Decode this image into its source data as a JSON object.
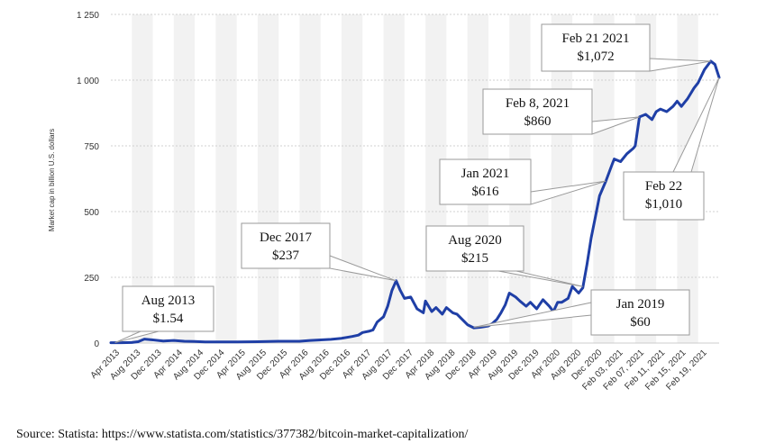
{
  "chart_data": {
    "type": "line",
    "ylabel": "Market cap in billion U.S. dollars",
    "ylim": [
      0,
      1250
    ],
    "y_ticks": [
      0,
      250,
      500,
      750,
      1000,
      1250
    ],
    "y_tick_labels": [
      "0",
      "250",
      "500",
      "750",
      "1 000",
      "1 250"
    ],
    "x_tick_labels": [
      "Apr 2013",
      "Aug 2013",
      "Dec 2013",
      "Apr 2014",
      "Aug 2014",
      "Dec 2014",
      "Apr 2015",
      "Aug 2015",
      "Dec 2015",
      "Apr 2016",
      "Aug 2016",
      "Dec 2016",
      "Apr 2017",
      "Aug 2017",
      "Dec 2017",
      "Apr 2018",
      "Aug 2018",
      "Dec 2018",
      "Apr 2019",
      "Aug 2019",
      "Dec 2019",
      "Apr 2020",
      "Aug 2020",
      "Dec 2020",
      "Feb 03, 2021",
      "Feb 07, 2021",
      "Feb 11, 2021",
      "Feb 15, 2021",
      "Feb 19, 2021"
    ],
    "grid": true,
    "series": [
      {
        "color": "#1f3fa6",
        "x": [
          0,
          0.5,
          1,
          1.3,
          1.6,
          2,
          2.5,
          3,
          3.5,
          4,
          4.5,
          5,
          6,
          7,
          8,
          9,
          9.5,
          10,
          10.5,
          11,
          11.5,
          11.8,
          12,
          12.3,
          12.5,
          12.7,
          13,
          13.2,
          13.4,
          13.6,
          13.8,
          14,
          14.3,
          14.6,
          14.9,
          15,
          15.3,
          15.5,
          15.8,
          16,
          16.3,
          16.5,
          17,
          17.3,
          17.6,
          18,
          18.2,
          18.4,
          18.6,
          18.8,
          19,
          19.3,
          19.5,
          19.8,
          20,
          20.3,
          20.6,
          20.9,
          21.1,
          21.3,
          21.5,
          21.8,
          22,
          22.3,
          22.5,
          22.7,
          22.9,
          23.1,
          23.3,
          23.6,
          23.9,
          24,
          24.3,
          24.6,
          24.9,
          25,
          25.2,
          25.5,
          25.8,
          26,
          26.2,
          26.5,
          26.8,
          27,
          27.2,
          27.5,
          27.8,
          28,
          28.3,
          28.6,
          28.8,
          29
        ],
        "y": [
          1.5,
          1.5,
          2,
          5,
          15,
          12,
          8,
          10,
          7,
          6,
          4,
          4,
          4,
          5,
          7,
          7,
          10,
          12,
          14,
          18,
          25,
          30,
          40,
          45,
          50,
          80,
          100,
          140,
          200,
          237,
          200,
          170,
          175,
          130,
          115,
          160,
          120,
          135,
          110,
          135,
          115,
          110,
          70,
          58,
          60,
          65,
          75,
          90,
          115,
          145,
          190,
          175,
          160,
          140,
          155,
          130,
          165,
          140,
          120,
          155,
          155,
          170,
          215,
          190,
          210,
          300,
          400,
          480,
          560,
          616,
          680,
          700,
          690,
          720,
          740,
          750,
          860,
          870,
          850,
          880,
          890,
          880,
          900,
          920,
          900,
          930,
          970,
          990,
          1040,
          1072,
          1060,
          1010
        ]
      }
    ],
    "annotations": [
      {
        "lines": [
          "Aug 2013",
          "$1.54"
        ]
      },
      {
        "lines": [
          "Dec 2017",
          "$237"
        ]
      },
      {
        "lines": [
          "Aug 2020",
          "$215"
        ]
      },
      {
        "lines": [
          "Jan 2019",
          "$60"
        ]
      },
      {
        "lines": [
          "Jan 2021",
          "$616"
        ]
      },
      {
        "lines": [
          "Feb 8, 2021",
          "$860"
        ]
      },
      {
        "lines": [
          "Feb 21 2021",
          "$1,072"
        ]
      },
      {
        "lines": [
          "Feb 22",
          "$1,010"
        ]
      }
    ]
  },
  "source_text": "Source: Statista: https://www.statista.com/statistics/377382/bitcoin-market-capitalization/"
}
